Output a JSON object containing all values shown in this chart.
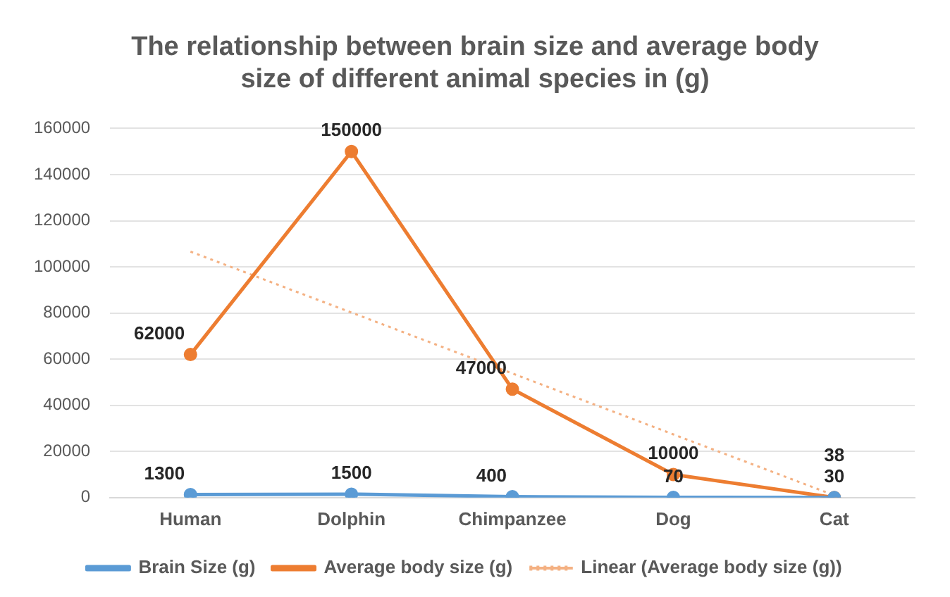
{
  "chart_data": {
    "type": "line",
    "title": "The relationship between brain size and average body size of different animal species in (g)",
    "categories": [
      "Human",
      "Dolphin",
      "Chimpanzee",
      "Dog",
      "Cat"
    ],
    "series": [
      {
        "name": "Brain Size (g)",
        "color": "#5b9bd5",
        "values": [
          1300,
          1500,
          400,
          70,
          30
        ],
        "value_labels": [
          "1300",
          "1500",
          "400",
          "70",
          "30"
        ]
      },
      {
        "name": "Average body size (g)",
        "color": "#ed7d31",
        "values": [
          62000,
          150000,
          47000,
          10000,
          38
        ],
        "value_labels": [
          "62000",
          "150000",
          "47000",
          "10000",
          "38"
        ]
      },
      {
        "name": "Linear (Average body size (g))",
        "color": "#f4b183",
        "values": [
          106600,
          80200,
          53800,
          27400,
          1000
        ],
        "line_style": "dotted",
        "marker": "none"
      }
    ],
    "ylim": [
      0,
      160000
    ],
    "yticks": [
      0,
      20000,
      40000,
      60000,
      80000,
      100000,
      120000,
      140000,
      160000
    ],
    "grid": "y",
    "legend": "bottom",
    "marker": "circle",
    "line_style": "solid"
  }
}
